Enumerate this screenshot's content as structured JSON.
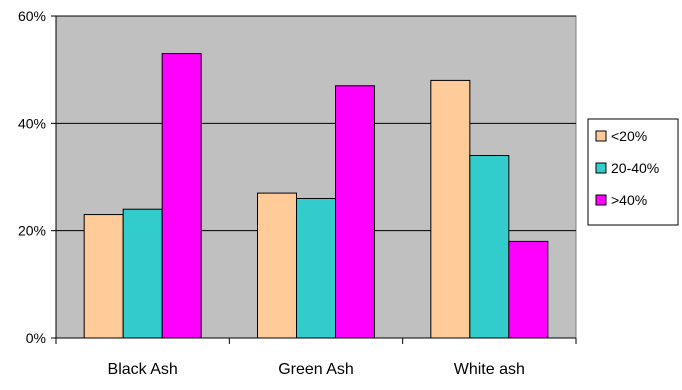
{
  "chart_data": {
    "type": "bar",
    "categories": [
      "Black Ash",
      "Green Ash",
      "White ash"
    ],
    "series": [
      {
        "name": "<20%",
        "values": [
          23,
          27,
          48
        ],
        "color": "#FFCC99"
      },
      {
        "name": "20-40%",
        "values": [
          24,
          26,
          34
        ],
        "color": "#33CCCC"
      },
      {
        "name": ">40%",
        "values": [
          53,
          47,
          18
        ],
        "color": "#FF00FF"
      }
    ],
    "ylim": [
      0,
      60
    ],
    "yticks": [
      0,
      20,
      40,
      60
    ],
    "ytick_labels": [
      "0%",
      "20%",
      "40%",
      "60%"
    ],
    "grid": true,
    "plot_background": "#C0C0C0",
    "legend_position": "right",
    "title": "",
    "xlabel": "",
    "ylabel": ""
  }
}
